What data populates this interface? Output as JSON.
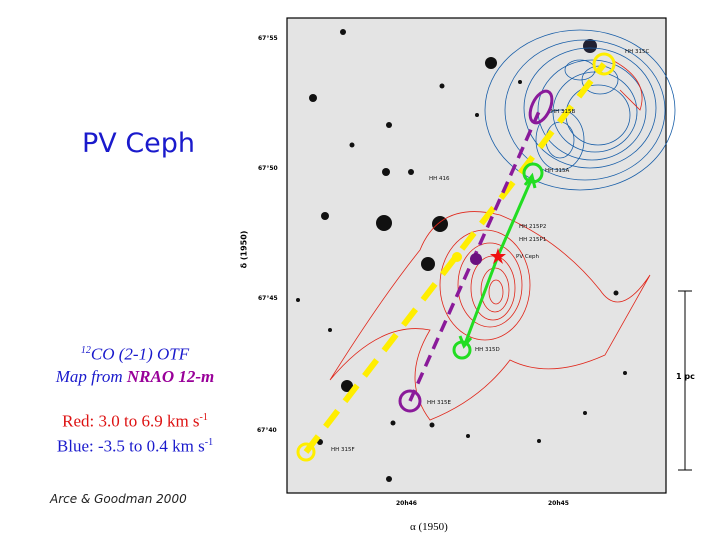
{
  "title": "PV Ceph",
  "map_info": {
    "line1_sup": "12",
    "line1": "CO (2-1) OTF",
    "line2_a": "Map from ",
    "line2_b": "NRAO 12-m",
    "red_range": "Red: 3.0 to 6.9 km s",
    "blue_range": "Blue: -3.5 to 0.4 km s",
    "unit_exp": "-1"
  },
  "citation": "Arce & Goodman 2000",
  "axes": {
    "dec_label": "δ (1950)",
    "ra_label": "α (1950)",
    "dec_ticks": [
      "67°55",
      "67°50",
      "67°45",
      "67°40"
    ],
    "ra_ticks": [
      "20h46",
      "20h45"
    ]
  },
  "objects": [
    "HH 315C",
    "HH 315B",
    "HH 315A",
    "HH 416",
    "HH 215P2",
    "HH 215P1",
    "PV Ceph",
    "HH 315D",
    "HH 315E",
    "HH 315F"
  ],
  "scale_bar": "1 pc",
  "colors": {
    "blue_contour": "#1a5fa8",
    "red_contour": "#e0261a",
    "yellow": "#ffee00",
    "purple": "#8a1a9a",
    "green": "#22dd22"
  }
}
